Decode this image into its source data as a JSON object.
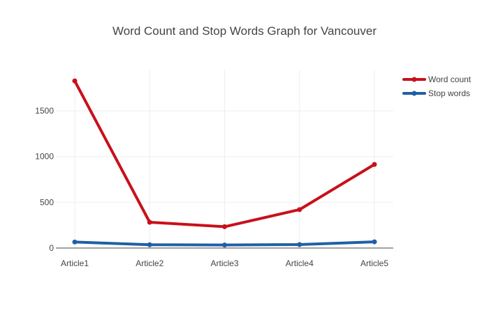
{
  "chart_data": {
    "type": "line",
    "title": "Word Count and Stop Words Graph for Vancouver",
    "xlabel": "",
    "ylabel": "",
    "categories": [
      "Article1",
      "Article2",
      "Article3",
      "Article4",
      "Article5"
    ],
    "series": [
      {
        "name": "Word count",
        "color": "#c8101a",
        "values": [
          1827,
          282,
          233,
          420,
          914
        ]
      },
      {
        "name": "Stop words",
        "color": "#1f5fa6",
        "values": [
          66,
          36,
          33,
          38,
          68
        ]
      }
    ],
    "ylim": [
      0,
      1950
    ],
    "yticks": [
      0,
      500,
      1000,
      1500
    ],
    "ytick_labels": [
      "0",
      "500",
      "1000",
      "1500"
    ],
    "grid": true,
    "legend_position": "top-right"
  }
}
